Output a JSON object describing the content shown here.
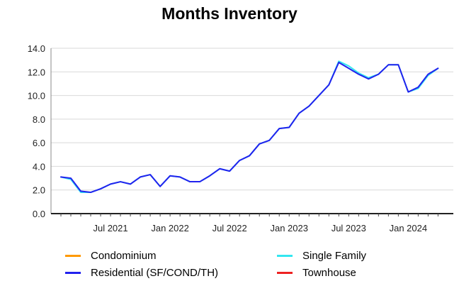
{
  "chart_data": {
    "type": "line",
    "title": "Months Inventory",
    "xlabel": "",
    "ylabel": "",
    "ylim": [
      0,
      14
    ],
    "y_ticks": [
      "0.0",
      "2.0",
      "4.0",
      "6.0",
      "8.0",
      "10.0",
      "12.0",
      "14.0"
    ],
    "x_tick_labels": [
      "Jul 2021",
      "Jan 2022",
      "Jul 2022",
      "Jan 2023",
      "Jul 2023",
      "Jan 2024"
    ],
    "grid": true,
    "legend_position": "bottom",
    "x": [
      "2021-02",
      "2021-03",
      "2021-04",
      "2021-05",
      "2021-06",
      "2021-07",
      "2021-08",
      "2021-09",
      "2021-10",
      "2021-11",
      "2021-12",
      "2022-01",
      "2022-02",
      "2022-03",
      "2022-04",
      "2022-05",
      "2022-06",
      "2022-07",
      "2022-08",
      "2022-09",
      "2022-10",
      "2022-11",
      "2022-12",
      "2023-01",
      "2023-02",
      "2023-03",
      "2023-04",
      "2023-05",
      "2023-06",
      "2023-07",
      "2023-08",
      "2023-09",
      "2023-10",
      "2023-11",
      "2023-12",
      "2024-01",
      "2024-02",
      "2024-03",
      "2024-04"
    ],
    "series": [
      {
        "name": "Condominium",
        "color": "#ff9900",
        "values": [
          null,
          null,
          null,
          null,
          null,
          null,
          null,
          null,
          null,
          null,
          null,
          null,
          null,
          null,
          null,
          null,
          null,
          null,
          null,
          null,
          null,
          null,
          null,
          null,
          null,
          null,
          null,
          null,
          null,
          null,
          null,
          null,
          null,
          null,
          null,
          null,
          null,
          null,
          null
        ]
      },
      {
        "name": "Single Family",
        "color": "#33e6f0",
        "values": [
          3.1,
          2.9,
          1.8,
          1.8,
          2.1,
          2.5,
          2.7,
          2.5,
          3.1,
          3.3,
          2.3,
          3.2,
          3.1,
          2.7,
          2.7,
          3.2,
          3.8,
          3.6,
          4.5,
          4.9,
          5.9,
          6.2,
          7.2,
          7.3,
          8.5,
          9.1,
          10.0,
          10.9,
          12.9,
          12.5,
          11.9,
          11.5,
          11.8,
          12.6,
          12.6,
          10.3,
          10.6,
          11.7,
          12.3
        ]
      },
      {
        "name": "Residential (SF/COND/TH)",
        "color": "#2222ee",
        "values": [
          3.1,
          3.0,
          1.9,
          1.8,
          2.1,
          2.5,
          2.7,
          2.5,
          3.1,
          3.3,
          2.3,
          3.2,
          3.1,
          2.7,
          2.7,
          3.2,
          3.8,
          3.6,
          4.5,
          4.9,
          5.9,
          6.2,
          7.2,
          7.3,
          8.5,
          9.1,
          10.0,
          10.9,
          12.8,
          12.3,
          11.8,
          11.4,
          11.8,
          12.6,
          12.6,
          10.3,
          10.7,
          11.8,
          12.3
        ]
      },
      {
        "name": "Townhouse",
        "color": "#ee2222",
        "values": [
          null,
          null,
          null,
          null,
          null,
          null,
          null,
          null,
          null,
          null,
          null,
          null,
          null,
          null,
          null,
          null,
          null,
          null,
          null,
          null,
          null,
          null,
          null,
          null,
          null,
          null,
          null,
          null,
          null,
          null,
          null,
          null,
          null,
          null,
          null,
          null,
          null,
          null,
          null
        ]
      }
    ]
  },
  "legend": [
    {
      "label": "Condominium",
      "color": "#ff9900"
    },
    {
      "label": "Single Family",
      "color": "#33e6f0"
    },
    {
      "label": "Residential (SF/COND/TH)",
      "color": "#2222ee"
    },
    {
      "label": "Townhouse",
      "color": "#ee2222"
    }
  ]
}
